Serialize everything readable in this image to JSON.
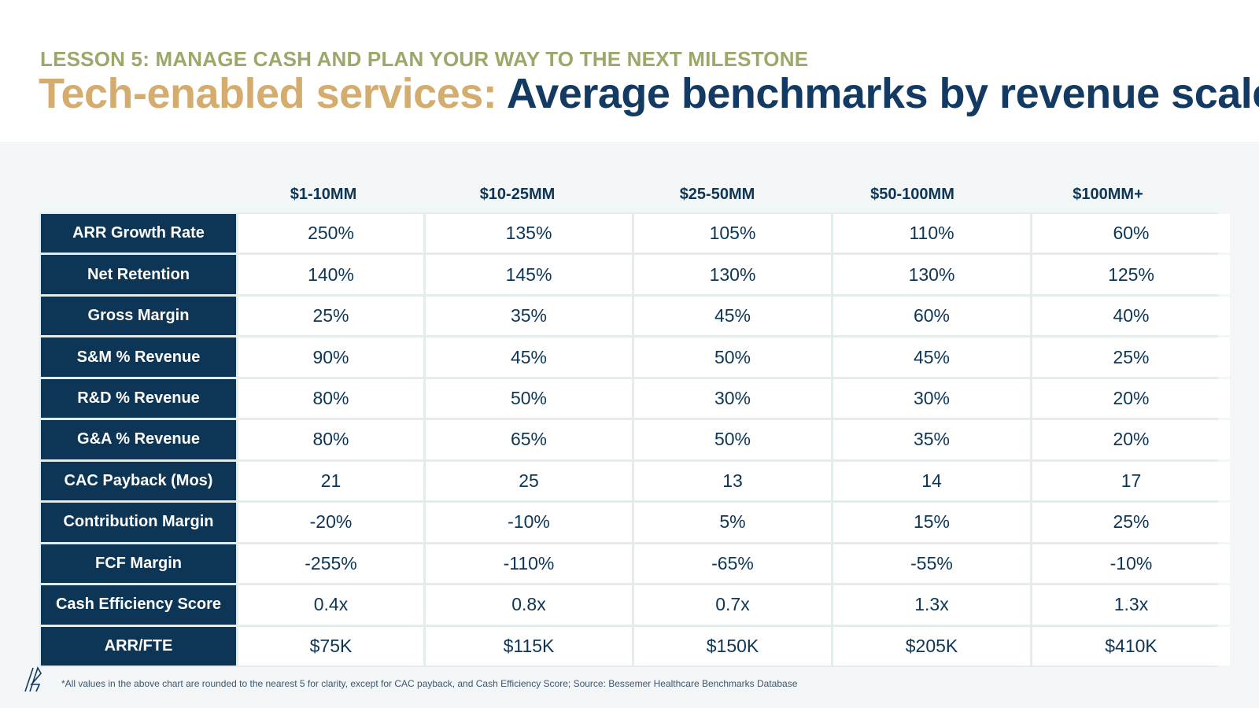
{
  "header": {
    "lesson": "LESSON 5: MANAGE CASH AND PLAN YOUR WAY TO THE NEXT MILESTONE",
    "title_part1": "Tech-enabled services:",
    "title_part2": "Average benchmarks by revenue scale"
  },
  "table": {
    "columns": [
      "$1-10MM",
      "$10-25MM",
      "$25-50MM",
      "$50-100MM",
      "$100MM+"
    ],
    "rows": [
      {
        "label": "ARR Growth Rate",
        "values": [
          "250%",
          "135%",
          "105%",
          "110%",
          "60%"
        ]
      },
      {
        "label": "Net Retention",
        "values": [
          "140%",
          "145%",
          "130%",
          "130%",
          "125%"
        ]
      },
      {
        "label": "Gross Margin",
        "values": [
          "25%",
          "35%",
          "45%",
          "60%",
          "40%"
        ]
      },
      {
        "label": "S&M % Revenue",
        "values": [
          "90%",
          "45%",
          "50%",
          "45%",
          "25%"
        ]
      },
      {
        "label": "R&D % Revenue",
        "values": [
          "80%",
          "50%",
          "30%",
          "30%",
          "20%"
        ]
      },
      {
        "label": "G&A % Revenue",
        "values": [
          "80%",
          "65%",
          "50%",
          "35%",
          "20%"
        ]
      },
      {
        "label": "CAC Payback (Mos)",
        "values": [
          "21",
          "25",
          "13",
          "14",
          "17"
        ]
      },
      {
        "label": "Contribution Margin",
        "values": [
          "-20%",
          "-10%",
          "5%",
          "15%",
          "25%"
        ]
      },
      {
        "label": "FCF Margin",
        "values": [
          "-255%",
          "-110%",
          "-65%",
          "-55%",
          "-10%"
        ]
      },
      {
        "label": "Cash Efficiency Score",
        "values": [
          "0.4x",
          "0.8x",
          "0.7x",
          "1.3x",
          "1.3x"
        ]
      },
      {
        "label": "ARR/FTE",
        "values": [
          "$75K",
          "$115K",
          "$150K",
          "$205K",
          "$410K"
        ]
      }
    ]
  },
  "footnote": "*All values in the above chart are rounded to the nearest 5 for clarity, except for CAC payback, and Cash Efficiency Score; Source: Bessemer Healthcare Benchmarks Database",
  "logo": {
    "icon": "bessemer-logo-icon"
  },
  "colors": {
    "lesson": "#9aa86a",
    "title_accent": "#d4ac6e",
    "navy": "#0c3556",
    "panel_bg": "#f3f6f6"
  }
}
